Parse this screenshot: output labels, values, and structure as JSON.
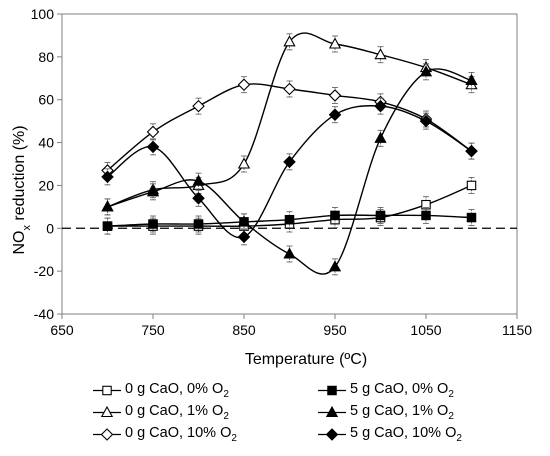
{
  "chart_data": {
    "type": "line",
    "xlabel": "Temperature (ºC)",
    "ylabel": "NOx reduction (%)",
    "xlim": [
      650,
      1150
    ],
    "ylim": [
      -40,
      100
    ],
    "xticks": [
      650,
      750,
      850,
      950,
      1050,
      1150
    ],
    "yticks": [
      -40,
      -20,
      0,
      20,
      40,
      60,
      80,
      100
    ],
    "x_tick_labels": [
      "650",
      "750",
      "850",
      "950",
      "1050",
      "1150"
    ],
    "y_tick_labels": [
      "-40",
      "-20",
      "0",
      "20",
      "40",
      "60",
      "80",
      "100"
    ],
    "grid": false,
    "reference_line": {
      "y": 0,
      "style": "dashed"
    },
    "legend_position": "bottom",
    "series": [
      {
        "name": "0 g CaO, 0% O2",
        "marker": "square",
        "filled": false,
        "x": [
          700,
          750,
          800,
          850,
          900,
          950,
          1000,
          1050,
          1100
        ],
        "values": [
          1,
          1,
          1,
          1,
          2,
          4,
          5,
          11,
          20
        ]
      },
      {
        "name": "5 g CaO, 0% O2",
        "marker": "square",
        "filled": true,
        "x": [
          700,
          750,
          800,
          850,
          900,
          950,
          1000,
          1050,
          1100
        ],
        "values": [
          1,
          2,
          2,
          3,
          4,
          6,
          6,
          6,
          5
        ]
      },
      {
        "name": "0 g CaO, 1% O2",
        "marker": "triangle",
        "filled": false,
        "x": [
          700,
          750,
          800,
          850,
          900,
          950,
          1000,
          1050,
          1100
        ],
        "values": [
          10,
          18,
          20,
          30,
          87,
          86,
          81,
          75,
          67
        ]
      },
      {
        "name": "5 g CaO, 1% O2",
        "marker": "triangle",
        "filled": true,
        "x": [
          700,
          750,
          800,
          850,
          900,
          950,
          1000,
          1050,
          1100
        ],
        "values": [
          10,
          17,
          22,
          3,
          -12,
          -18,
          42,
          73,
          69
        ]
      },
      {
        "name": "0 g CaO, 10% O2",
        "marker": "diamond",
        "filled": false,
        "x": [
          700,
          750,
          800,
          850,
          900,
          950,
          1000,
          1050,
          1100
        ],
        "values": [
          27,
          45,
          57,
          67,
          65,
          62,
          59,
          51,
          36
        ]
      },
      {
        "name": "5 g CaO, 10% O2",
        "marker": "diamond",
        "filled": true,
        "x": [
          700,
          750,
          800,
          850,
          900,
          950,
          1000,
          1050,
          1100
        ],
        "values": [
          24,
          38,
          14,
          -4,
          31,
          53,
          57,
          50,
          36
        ]
      }
    ]
  },
  "legend": {
    "items": [
      {
        "text": "0 g CaO, 0% O",
        "sub": "2"
      },
      {
        "text": "5 g CaO, 0% O",
        "sub": "2"
      },
      {
        "text": "0 g CaO, 1% O",
        "sub": "2"
      },
      {
        "text": "5 g CaO, 1% O",
        "sub": "2"
      },
      {
        "text": "0 g CaO, 10% O",
        "sub": "2"
      },
      {
        "text": "5 g CaO, 10% O",
        "sub": "2"
      }
    ]
  },
  "axis_title": {
    "y_main": "NO",
    "y_sub": "x",
    "y_rest": " reduction (%)",
    "x": "Temperature (ºC)"
  }
}
